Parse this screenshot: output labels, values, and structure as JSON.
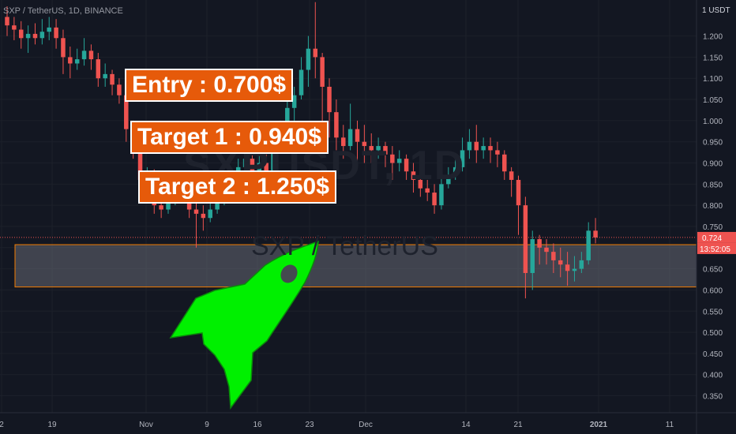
{
  "header": {
    "symbol_line": "SXP / TetherUS, 1D, BINANCE"
  },
  "watermark": {
    "symbol": "SXPUSDT, 1D",
    "name": "SXP / TetherUS"
  },
  "annotations": {
    "entry": "Entry : 0.700$",
    "target1": "Target 1 : 0.940$",
    "target2": "Target 2 : 1.250$"
  },
  "price_axis": {
    "unit": "1 USDT",
    "current_price": "0.724",
    "countdown": "13:52:05"
  },
  "colors": {
    "up": "#26a69a",
    "down": "#ef5350",
    "zone_border": "#f57c00",
    "label_bg": "#e65a0a",
    "rocket": "#00f000"
  },
  "chart_data": {
    "type": "candlestick",
    "title": "SXP / TetherUS, 1D, BINANCE",
    "y_ticks": [
      "1.200",
      "1.150",
      "1.100",
      "1.050",
      "1.000",
      "0.950",
      "0.900",
      "0.850",
      "0.800",
      "0.750",
      "0.700",
      "0.650",
      "0.600",
      "0.550",
      "0.500",
      "0.450",
      "0.400",
      "0.350"
    ],
    "x_ticks": [
      "2",
      "19",
      "Nov",
      "9",
      "16",
      "23",
      "Dec",
      "14",
      "21",
      "2021",
      "11"
    ],
    "ylim": [
      0.31,
      1.285
    ],
    "zone": {
      "low": 0.607,
      "high": 0.707
    },
    "last_price": 0.724,
    "candles": [
      [
        1.245,
        1.225,
        1.27,
        1.2
      ],
      [
        1.225,
        1.215,
        1.245,
        1.19
      ],
      [
        1.215,
        1.195,
        1.235,
        1.17
      ],
      [
        1.195,
        1.205,
        1.225,
        1.16
      ],
      [
        1.205,
        1.195,
        1.23,
        1.18
      ],
      [
        1.195,
        1.21,
        1.24,
        1.18
      ],
      [
        1.21,
        1.22,
        1.245,
        1.19
      ],
      [
        1.22,
        1.195,
        1.24,
        1.17
      ],
      [
        1.195,
        1.15,
        1.215,
        1.11
      ],
      [
        1.15,
        1.135,
        1.175,
        1.1
      ],
      [
        1.135,
        1.145,
        1.17,
        1.12
      ],
      [
        1.145,
        1.165,
        1.195,
        1.13
      ],
      [
        1.165,
        1.145,
        1.18,
        1.12
      ],
      [
        1.145,
        1.1,
        1.16,
        1.08
      ],
      [
        1.1,
        1.11,
        1.135,
        1.08
      ],
      [
        1.11,
        1.085,
        1.12,
        1.06
      ],
      [
        1.085,
        1.06,
        1.1,
        1.04
      ],
      [
        1.06,
        0.98,
        1.075,
        0.95
      ],
      [
        0.98,
        0.95,
        1.0,
        0.91
      ],
      [
        0.95,
        0.86,
        0.97,
        0.84
      ],
      [
        0.86,
        0.87,
        0.89,
        0.83
      ],
      [
        0.87,
        0.8,
        0.885,
        0.78
      ],
      [
        0.8,
        0.79,
        0.83,
        0.77
      ],
      [
        0.79,
        0.82,
        0.84,
        0.78
      ],
      [
        0.82,
        0.83,
        0.86,
        0.8
      ],
      [
        0.83,
        0.85,
        0.87,
        0.82
      ],
      [
        0.85,
        0.79,
        0.87,
        0.77
      ],
      [
        0.79,
        0.78,
        0.81,
        0.7
      ],
      [
        0.78,
        0.77,
        0.8,
        0.74
      ],
      [
        0.77,
        0.79,
        0.81,
        0.76
      ],
      [
        0.79,
        0.81,
        0.83,
        0.78
      ],
      [
        0.81,
        0.83,
        0.85,
        0.8
      ],
      [
        0.83,
        0.86,
        0.88,
        0.82
      ],
      [
        0.86,
        0.89,
        0.91,
        0.85
      ],
      [
        0.89,
        0.91,
        0.93,
        0.87
      ],
      [
        0.91,
        0.87,
        0.92,
        0.85
      ],
      [
        0.87,
        0.9,
        0.92,
        0.86
      ],
      [
        0.9,
        0.88,
        0.92,
        0.86
      ],
      [
        0.88,
        0.95,
        0.97,
        0.87
      ],
      [
        0.95,
        0.97,
        1.0,
        0.93
      ],
      [
        0.97,
        1.03,
        1.05,
        0.95
      ],
      [
        1.03,
        1.06,
        1.08,
        1.0
      ],
      [
        1.06,
        1.12,
        1.15,
        1.05
      ],
      [
        1.12,
        1.17,
        1.2,
        1.08
      ],
      [
        1.17,
        1.15,
        1.28,
        1.1
      ],
      [
        1.15,
        1.08,
        1.16,
        0.95
      ],
      [
        1.08,
        1.02,
        1.1,
        0.96
      ],
      [
        1.02,
        0.96,
        1.05,
        0.93
      ],
      [
        0.96,
        0.94,
        0.99,
        0.91
      ],
      [
        0.94,
        0.98,
        1.04,
        0.93
      ],
      [
        0.98,
        0.95,
        1.0,
        0.9
      ],
      [
        0.95,
        0.94,
        0.99,
        0.9
      ],
      [
        0.94,
        0.93,
        0.97,
        0.9
      ],
      [
        0.93,
        0.94,
        0.96,
        0.91
      ],
      [
        0.94,
        0.92,
        0.95,
        0.89
      ],
      [
        0.92,
        0.9,
        0.94,
        0.86
      ],
      [
        0.9,
        0.91,
        0.93,
        0.88
      ],
      [
        0.91,
        0.88,
        0.92,
        0.86
      ],
      [
        0.88,
        0.86,
        0.9,
        0.83
      ],
      [
        0.86,
        0.84,
        0.88,
        0.82
      ],
      [
        0.84,
        0.83,
        0.86,
        0.81
      ],
      [
        0.83,
        0.8,
        0.85,
        0.78
      ],
      [
        0.8,
        0.85,
        0.87,
        0.79
      ],
      [
        0.85,
        0.87,
        0.89,
        0.84
      ],
      [
        0.87,
        0.89,
        0.91,
        0.86
      ],
      [
        0.89,
        0.93,
        0.96,
        0.88
      ],
      [
        0.93,
        0.95,
        0.98,
        0.91
      ],
      [
        0.95,
        0.93,
        0.99,
        0.9
      ],
      [
        0.93,
        0.94,
        0.96,
        0.91
      ],
      [
        0.94,
        0.93,
        0.96,
        0.9
      ],
      [
        0.93,
        0.92,
        0.95,
        0.89
      ],
      [
        0.92,
        0.88,
        0.93,
        0.86
      ],
      [
        0.88,
        0.86,
        0.89,
        0.82
      ],
      [
        0.86,
        0.8,
        0.87,
        0.73
      ],
      [
        0.8,
        0.64,
        0.82,
        0.58
      ],
      [
        0.64,
        0.72,
        0.74,
        0.6
      ],
      [
        0.72,
        0.7,
        0.73,
        0.66
      ],
      [
        0.7,
        0.69,
        0.72,
        0.66
      ],
      [
        0.69,
        0.67,
        0.71,
        0.64
      ],
      [
        0.67,
        0.66,
        0.7,
        0.63
      ],
      [
        0.66,
        0.645,
        0.69,
        0.61
      ],
      [
        0.645,
        0.65,
        0.68,
        0.62
      ],
      [
        0.65,
        0.67,
        0.69,
        0.64
      ],
      [
        0.67,
        0.74,
        0.76,
        0.66
      ],
      [
        0.74,
        0.724,
        0.77,
        0.71
      ]
    ]
  }
}
